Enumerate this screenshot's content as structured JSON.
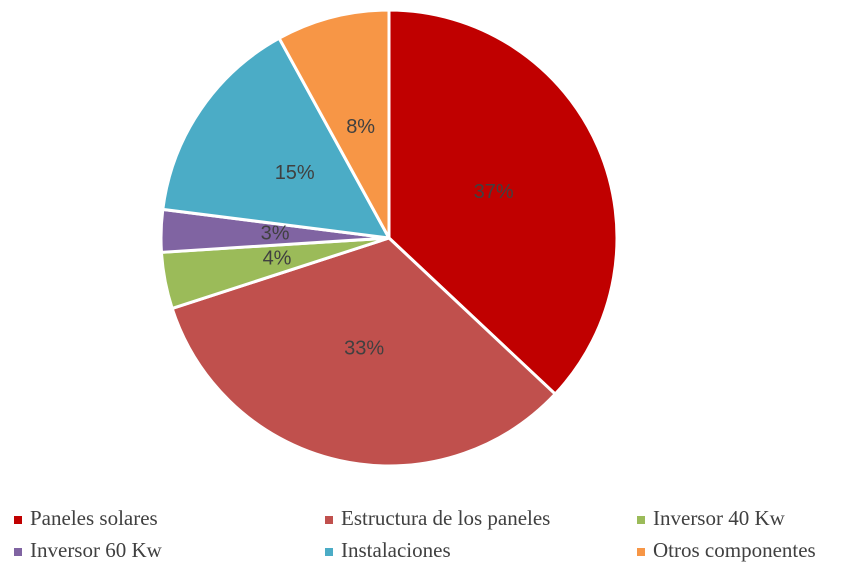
{
  "chart_data": {
    "type": "pie",
    "categories": [
      "Paneles solares",
      "Estructura de los paneles",
      "Inversor 40 Kw",
      "Inversor 60 Kw",
      "Instalaciones",
      "Otros componentes"
    ],
    "values": [
      37,
      33,
      4,
      3,
      15,
      8
    ],
    "value_labels": [
      "37%",
      "33%",
      "4%",
      "3%",
      "15%",
      "8%"
    ],
    "colors": [
      "#c00000",
      "#c0504d",
      "#9bbb59",
      "#8064a2",
      "#4bacc6",
      "#f79646"
    ],
    "legend": "bottom"
  }
}
